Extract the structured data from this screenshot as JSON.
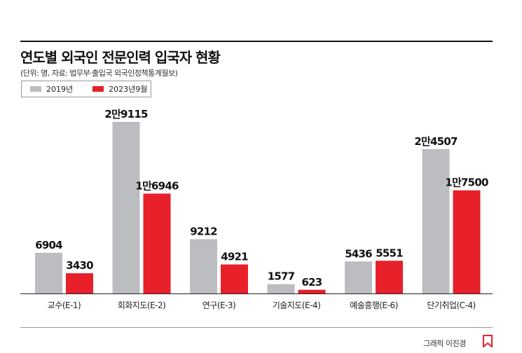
{
  "header": {
    "title": "연도별 외국인 전문인력 입국자 현황",
    "source": "(단위: 명, 자료: 법무부·출입국 외국인정책통계월보)"
  },
  "legend": [
    {
      "label": "2019년",
      "color": "#bcbdc0"
    },
    {
      "label": "2023년9월",
      "color": "#e8202a"
    }
  ],
  "credit": "그래픽 이진경",
  "chart_data": {
    "type": "bar",
    "categories": [
      "교수(E-1)",
      "회화지도(E-2)",
      "연구(E-3)",
      "기술지도(E-4)",
      "예술흥행(E-6)",
      "단기취업(C-4)"
    ],
    "series": [
      {
        "name": "2019년",
        "color": "#bcbdc0",
        "values": [
          6904,
          29115,
          9212,
          1577,
          5436,
          24507
        ],
        "labels": [
          "6904",
          "2만9115",
          "9212",
          "1577",
          "5436",
          "2만4507"
        ]
      },
      {
        "name": "2023년9월",
        "color": "#e8202a",
        "values": [
          3430,
          16946,
          4921,
          623,
          5551,
          17500
        ],
        "labels": [
          "3430",
          "1만6946",
          "4921",
          "623",
          "5551",
          "1만7500"
        ]
      }
    ],
    "ylim": [
      0,
      29115
    ],
    "grid": false,
    "legend_position": "top-left"
  }
}
